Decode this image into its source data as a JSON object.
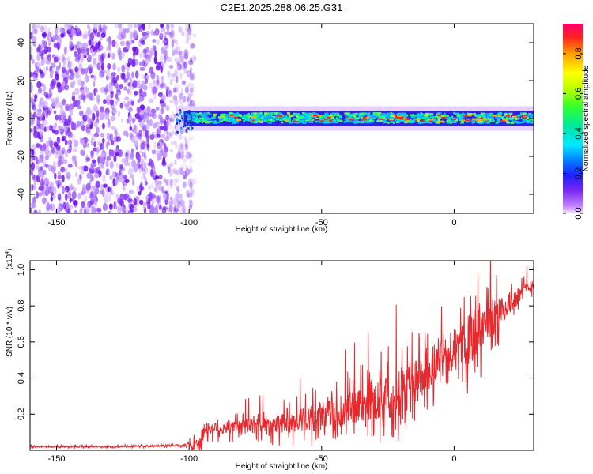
{
  "title": "C2E1.2025.288.06.25.G31",
  "colors": {
    "snr_line": "#e8282d",
    "spec_low": "#7a28f0",
    "spec_mid": "#00e8b0",
    "spec_high": "#ff0000"
  },
  "chart_data": [
    {
      "type": "heatmap",
      "name": "spectrogram",
      "xlabel": "Height of straight line (km)",
      "ylabel": "Frequency (Hz)",
      "xlim": [
        -160,
        30
      ],
      "ylim": [
        -50,
        50
      ],
      "x_ticks": [
        -150,
        -100,
        -50,
        0
      ],
      "y_ticks": [
        -40,
        -20,
        0,
        20,
        40
      ],
      "description_points": {
        "noise_region_end_km": -98,
        "signal_start_km": -105,
        "signal_band_hz": [
          -4,
          4
        ]
      },
      "colorbar": {
        "label": "Normalized spectral amplitude",
        "range": [
          0.0,
          0.95
        ],
        "ticks": [
          0.0,
          0.2,
          0.4,
          0.6,
          0.8
        ],
        "tick_labels": [
          "0.0",
          "0.2",
          "0.4",
          "0.6",
          "0.8"
        ]
      }
    },
    {
      "type": "line",
      "name": "snr",
      "xlabel": "Height of straight line (km)",
      "ylabel": "SNR (10 * v/v)",
      "y_scale_label": "(x10",
      "y_scale_exp": "4",
      "xlim": [
        -160,
        30
      ],
      "ylim": [
        0,
        1.05
      ],
      "x_ticks": [
        -150,
        -100,
        -50,
        0
      ],
      "y_ticks": [
        0.2,
        0.4,
        0.6,
        0.8,
        1.0
      ],
      "y_tick_labels": [
        "0.2",
        "0.4",
        "0.6",
        "0.8",
        "1.0"
      ],
      "series": [
        {
          "name": "SNR",
          "x": [
            -160,
            -140,
            -120,
            -100,
            -96,
            -94,
            -90,
            -80,
            -70,
            -60,
            -50,
            -40,
            -30,
            -25,
            -20,
            -15,
            -10,
            -5,
            0,
            5,
            8,
            10,
            15,
            20,
            25,
            30
          ],
          "baseline": [
            0.02,
            0.02,
            0.02,
            0.03,
            0.04,
            0.12,
            0.12,
            0.13,
            0.14,
            0.16,
            0.19,
            0.22,
            0.28,
            0.3,
            0.34,
            0.38,
            0.43,
            0.5,
            0.56,
            0.6,
            0.63,
            0.66,
            0.74,
            0.8,
            0.87,
            0.92
          ],
          "spread": [
            0.005,
            0.005,
            0.005,
            0.01,
            0.08,
            0.05,
            0.05,
            0.06,
            0.07,
            0.09,
            0.11,
            0.14,
            0.16,
            0.18,
            0.2,
            0.18,
            0.15,
            0.12,
            0.08,
            0.2,
            0.25,
            0.18,
            0.15,
            0.1,
            0.06,
            0.04
          ]
        }
      ]
    }
  ]
}
